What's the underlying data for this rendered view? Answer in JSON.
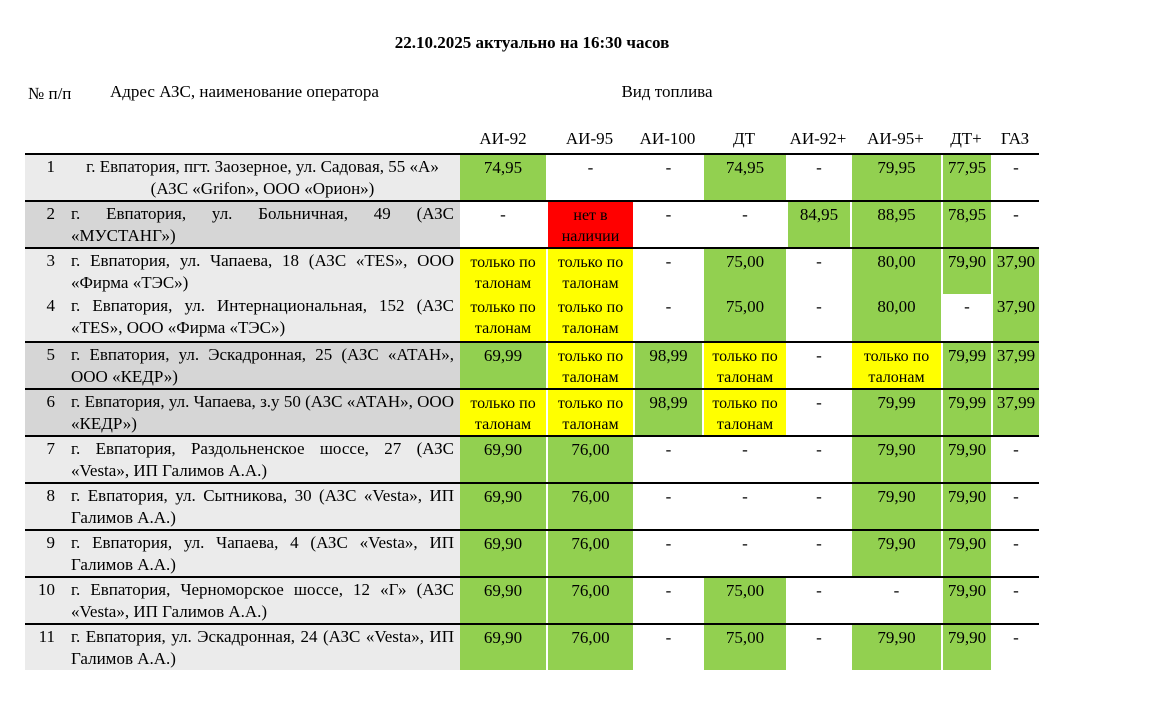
{
  "title": "22.10.2025 актуально на 16:30 часов",
  "table": {
    "col_num_header": "№ п/п",
    "col_address_header": "Адрес АЗС, наименование оператора",
    "fuel_group_header": "Вид топлива",
    "fuel_columns": [
      "АИ-92",
      "АИ-95",
      "АИ-100",
      "ДТ",
      "АИ-92+",
      "АИ-95+",
      "ДТ+",
      "ГАЗ"
    ],
    "status_colors": {
      "available": "#92d050",
      "coupon": "#ffff00",
      "out": "#ff0000",
      "none": "#ffffff"
    },
    "row_shades": {
      "light": "#ebebeb",
      "dark": "#d6d6d6"
    },
    "coupon_text": "только по талонам",
    "out_text": "нет в наличии",
    "rows": [
      {
        "num": "1",
        "address": "г. Евпатория, пгт. Заозерное, ул. Садовая, 55 «А» (АЗС «Grifon», ООО «Орион»)",
        "shade": "light",
        "align": "center",
        "border_top": true,
        "cells": [
          {
            "text": "74,95",
            "status": "available"
          },
          {
            "text": "-",
            "status": "none"
          },
          {
            "text": "-",
            "status": "none"
          },
          {
            "text": "74,95",
            "status": "available"
          },
          {
            "text": "-",
            "status": "none"
          },
          {
            "text": "79,95",
            "status": "available"
          },
          {
            "text": "77,95",
            "status": "available"
          },
          {
            "text": "-",
            "status": "none"
          }
        ]
      },
      {
        "num": "2",
        "address": "г. Евпатория, ул. Больничная, 49 (АЗС «МУСТАНГ»)",
        "shade": "dark",
        "align": "justify",
        "border_top": true,
        "cells": [
          {
            "text": "-",
            "status": "none"
          },
          {
            "text": "нет в наличии",
            "status": "out"
          },
          {
            "text": "-",
            "status": "none"
          },
          {
            "text": "-",
            "status": "none"
          },
          {
            "text": "84,95",
            "status": "available"
          },
          {
            "text": "88,95",
            "status": "available"
          },
          {
            "text": "78,95",
            "status": "available"
          },
          {
            "text": "-",
            "status": "none"
          }
        ]
      },
      {
        "num": "3",
        "address": "г. Евпатория, ул. Чапаева, 18 (АЗС «TES», ООО «Фирма «ТЭС»)",
        "shade": "light",
        "align": "justify",
        "border_top": true,
        "cells": [
          {
            "text": "только по талонам",
            "status": "coupon"
          },
          {
            "text": "только по талонам",
            "status": "coupon"
          },
          {
            "text": "-",
            "status": "none"
          },
          {
            "text": "75,00",
            "status": "available"
          },
          {
            "text": "-",
            "status": "none"
          },
          {
            "text": "80,00",
            "status": "available"
          },
          {
            "text": "79,90",
            "status": "available"
          },
          {
            "text": "37,90",
            "status": "available"
          }
        ]
      },
      {
        "num": "4",
        "address": "г. Евпатория, ул. Интернациональная, 152 (АЗС «TES», ООО «Фирма «ТЭС»)",
        "shade": "light",
        "align": "justify",
        "border_top": false,
        "cells": [
          {
            "text": "только по талонам",
            "status": "coupon"
          },
          {
            "text": "только по талонам",
            "status": "coupon"
          },
          {
            "text": "-",
            "status": "none"
          },
          {
            "text": "75,00",
            "status": "available"
          },
          {
            "text": "-",
            "status": "none"
          },
          {
            "text": "80,00",
            "status": "available"
          },
          {
            "text": "-",
            "status": "none"
          },
          {
            "text": "37,90",
            "status": "available"
          }
        ]
      },
      {
        "num": "5",
        "address": "г. Евпатория, ул. Эскадронная, 25 (АЗС «АТАН», ООО «КЕДР»)",
        "shade": "dark",
        "align": "justify",
        "border_top": true,
        "cells": [
          {
            "text": "69,99",
            "status": "available"
          },
          {
            "text": "только по талонам",
            "status": "coupon"
          },
          {
            "text": "98,99",
            "status": "available"
          },
          {
            "text": "только по талонам",
            "status": "coupon"
          },
          {
            "text": "-",
            "status": "none"
          },
          {
            "text": "только по талонам",
            "status": "coupon"
          },
          {
            "text": "79,99",
            "status": "available"
          },
          {
            "text": "37,99",
            "status": "available"
          }
        ]
      },
      {
        "num": "6",
        "address": "г. Евпатория, ул. Чапаева, з.у 50 (АЗС «АТАН», ООО «КЕДР»)",
        "shade": "dark",
        "align": "justify",
        "border_top": true,
        "cells": [
          {
            "text": "только по талонам",
            "status": "coupon"
          },
          {
            "text": "только по талонам",
            "status": "coupon"
          },
          {
            "text": "98,99",
            "status": "available"
          },
          {
            "text": "только по талонам",
            "status": "coupon"
          },
          {
            "text": "-",
            "status": "none"
          },
          {
            "text": "79,99",
            "status": "available"
          },
          {
            "text": "79,99",
            "status": "available"
          },
          {
            "text": "37,99",
            "status": "available"
          }
        ]
      },
      {
        "num": "7",
        "address": "г. Евпатория, Раздольненское шоссе, 27 (АЗС «Vesta», ИП Галимов А.А.)",
        "shade": "light",
        "align": "justify",
        "border_top": true,
        "cells": [
          {
            "text": "69,90",
            "status": "available"
          },
          {
            "text": "76,00",
            "status": "available"
          },
          {
            "text": "-",
            "status": "none"
          },
          {
            "text": "-",
            "status": "none"
          },
          {
            "text": "-",
            "status": "none"
          },
          {
            "text": "79,90",
            "status": "available"
          },
          {
            "text": "79,90",
            "status": "available"
          },
          {
            "text": "-",
            "status": "none"
          }
        ]
      },
      {
        "num": "8",
        "address": "г. Евпатория, ул. Сытникова, 30 (АЗС «Vesta», ИП Галимов А.А.)",
        "shade": "light",
        "align": "justify",
        "border_top": true,
        "cells": [
          {
            "text": "69,90",
            "status": "available"
          },
          {
            "text": "76,00",
            "status": "available"
          },
          {
            "text": "-",
            "status": "none"
          },
          {
            "text": "-",
            "status": "none"
          },
          {
            "text": "-",
            "status": "none"
          },
          {
            "text": "79,90",
            "status": "available"
          },
          {
            "text": "79,90",
            "status": "available"
          },
          {
            "text": "-",
            "status": "none"
          }
        ]
      },
      {
        "num": "9",
        "address": "г. Евпатория, ул. Чапаева, 4 (АЗС «Vesta», ИП Галимов А.А.)",
        "shade": "light",
        "align": "justify",
        "border_top": true,
        "cells": [
          {
            "text": "69,90",
            "status": "available"
          },
          {
            "text": "76,00",
            "status": "available"
          },
          {
            "text": "-",
            "status": "none"
          },
          {
            "text": "-",
            "status": "none"
          },
          {
            "text": "-",
            "status": "none"
          },
          {
            "text": "79,90",
            "status": "available"
          },
          {
            "text": "79,90",
            "status": "available"
          },
          {
            "text": "-",
            "status": "none"
          }
        ]
      },
      {
        "num": "10",
        "address": "г. Евпатория, Черноморское шоссе, 12 «Г» (АЗС «Vesta», ИП Галимов А.А.)",
        "shade": "light",
        "align": "justify",
        "border_top": true,
        "cells": [
          {
            "text": "69,90",
            "status": "available"
          },
          {
            "text": "76,00",
            "status": "available"
          },
          {
            "text": "-",
            "status": "none"
          },
          {
            "text": "75,00",
            "status": "available"
          },
          {
            "text": "-",
            "status": "none"
          },
          {
            "text": "-",
            "status": "none"
          },
          {
            "text": "79,90",
            "status": "available"
          },
          {
            "text": "-",
            "status": "none"
          }
        ]
      },
      {
        "num": "11",
        "address": "г. Евпатория, ул. Эскадронная, 24 (АЗС «Vesta», ИП Галимов А.А.)",
        "shade": "light",
        "align": "justify",
        "border_top": true,
        "cells": [
          {
            "text": "69,90",
            "status": "available"
          },
          {
            "text": "76,00",
            "status": "available"
          },
          {
            "text": "-",
            "status": "none"
          },
          {
            "text": "75,00",
            "status": "available"
          },
          {
            "text": "-",
            "status": "none"
          },
          {
            "text": "79,90",
            "status": "available"
          },
          {
            "text": "79,90",
            "status": "available"
          },
          {
            "text": "-",
            "status": "none"
          }
        ]
      }
    ]
  }
}
